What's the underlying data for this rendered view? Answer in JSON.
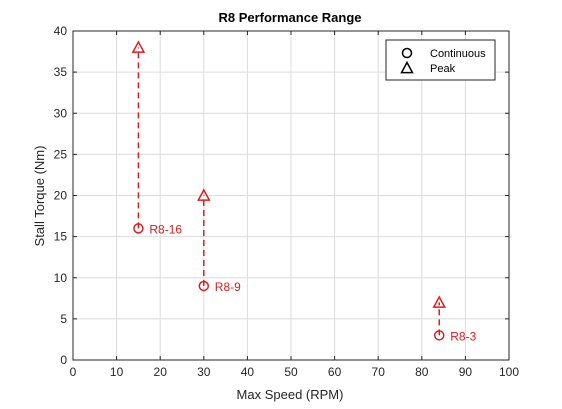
{
  "chart_data": {
    "type": "scatter",
    "title": "R8 Performance Range",
    "xlabel": "Max Speed (RPM)",
    "ylabel": "Stall Torque (Nm)",
    "xlim": [
      0,
      100
    ],
    "ylim": [
      0,
      40
    ],
    "xticks": [
      0,
      10,
      20,
      30,
      40,
      50,
      60,
      70,
      80,
      90,
      100
    ],
    "yticks": [
      0,
      5,
      10,
      15,
      20,
      25,
      30,
      35,
      40
    ],
    "grid": true,
    "legend_position": "top-right",
    "legend": [
      {
        "label": "Continuous",
        "marker": "circle"
      },
      {
        "label": "Peak",
        "marker": "triangle"
      }
    ],
    "color": "#e41a1c",
    "series": [
      {
        "name": "Continuous",
        "marker": "circle",
        "points": [
          {
            "x": 15,
            "y": 16
          },
          {
            "x": 30,
            "y": 9
          },
          {
            "x": 84,
            "y": 3
          }
        ]
      },
      {
        "name": "Peak",
        "marker": "triangle",
        "points": [
          {
            "x": 15,
            "y": 38
          },
          {
            "x": 30,
            "y": 20
          },
          {
            "x": 84,
            "y": 7
          }
        ]
      }
    ],
    "point_labels": [
      {
        "text": "R8-16",
        "x": 15,
        "y": 16
      },
      {
        "text": "R8-9",
        "x": 30,
        "y": 9
      },
      {
        "text": "R8-3",
        "x": 84,
        "y": 3
      }
    ],
    "ranges": [
      {
        "x": 15,
        "y_from": 16,
        "y_to": 38
      },
      {
        "x": 30,
        "y_from": 9,
        "y_to": 20
      },
      {
        "x": 84,
        "y_from": 3,
        "y_to": 7
      }
    ]
  }
}
